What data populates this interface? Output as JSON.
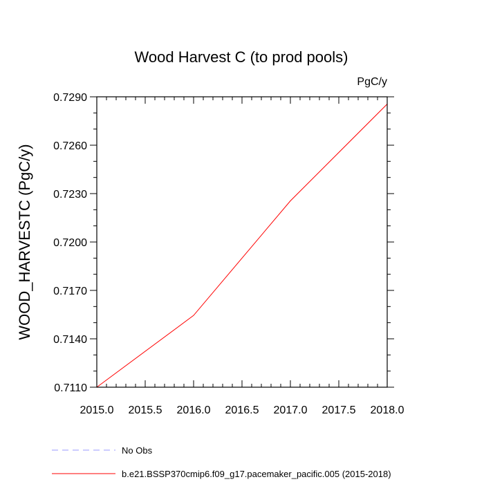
{
  "chart_data": {
    "type": "line",
    "title": "Wood Harvest C (to prod pools)",
    "units_label": "PgC/y",
    "ylabel": "WOOD_HARVESTC  (PgC/y)",
    "xlabel": "",
    "xlim": [
      2015.0,
      2018.0
    ],
    "ylim": [
      0.711,
      0.729
    ],
    "x_ticks": [
      2015.0,
      2015.5,
      2016.0,
      2016.5,
      2017.0,
      2017.5,
      2018.0
    ],
    "x_tick_labels": [
      "2015.0",
      "2015.5",
      "2016.0",
      "2016.5",
      "2017.0",
      "2017.5",
      "2018.0"
    ],
    "y_ticks": [
      0.711,
      0.714,
      0.717,
      0.72,
      0.723,
      0.726,
      0.729
    ],
    "y_tick_labels": [
      "0.7110",
      "0.7140",
      "0.7170",
      "0.7200",
      "0.7230",
      "0.7260",
      "0.7290"
    ],
    "grid": false,
    "legend_position": "bottom-left",
    "series": [
      {
        "name": "b.e21.BSSP370cmip6.f09_g17.pacemaker_pacific.005 (2015-2018)",
        "color": "#ff0000",
        "style": "solid",
        "x": [
          2015.0,
          2016.0,
          2017.0,
          2018.0
        ],
        "y": [
          0.711,
          0.71545,
          0.72255,
          0.72855
        ]
      }
    ],
    "legend": [
      {
        "label": "No Obs",
        "color": "#9999ff",
        "style": "dashed"
      },
      {
        "label": "b.e21.BSSP370cmip6.f09_g17.pacemaker_pacific.005 (2015-2018)",
        "color": "#ff0000",
        "style": "solid"
      }
    ]
  }
}
